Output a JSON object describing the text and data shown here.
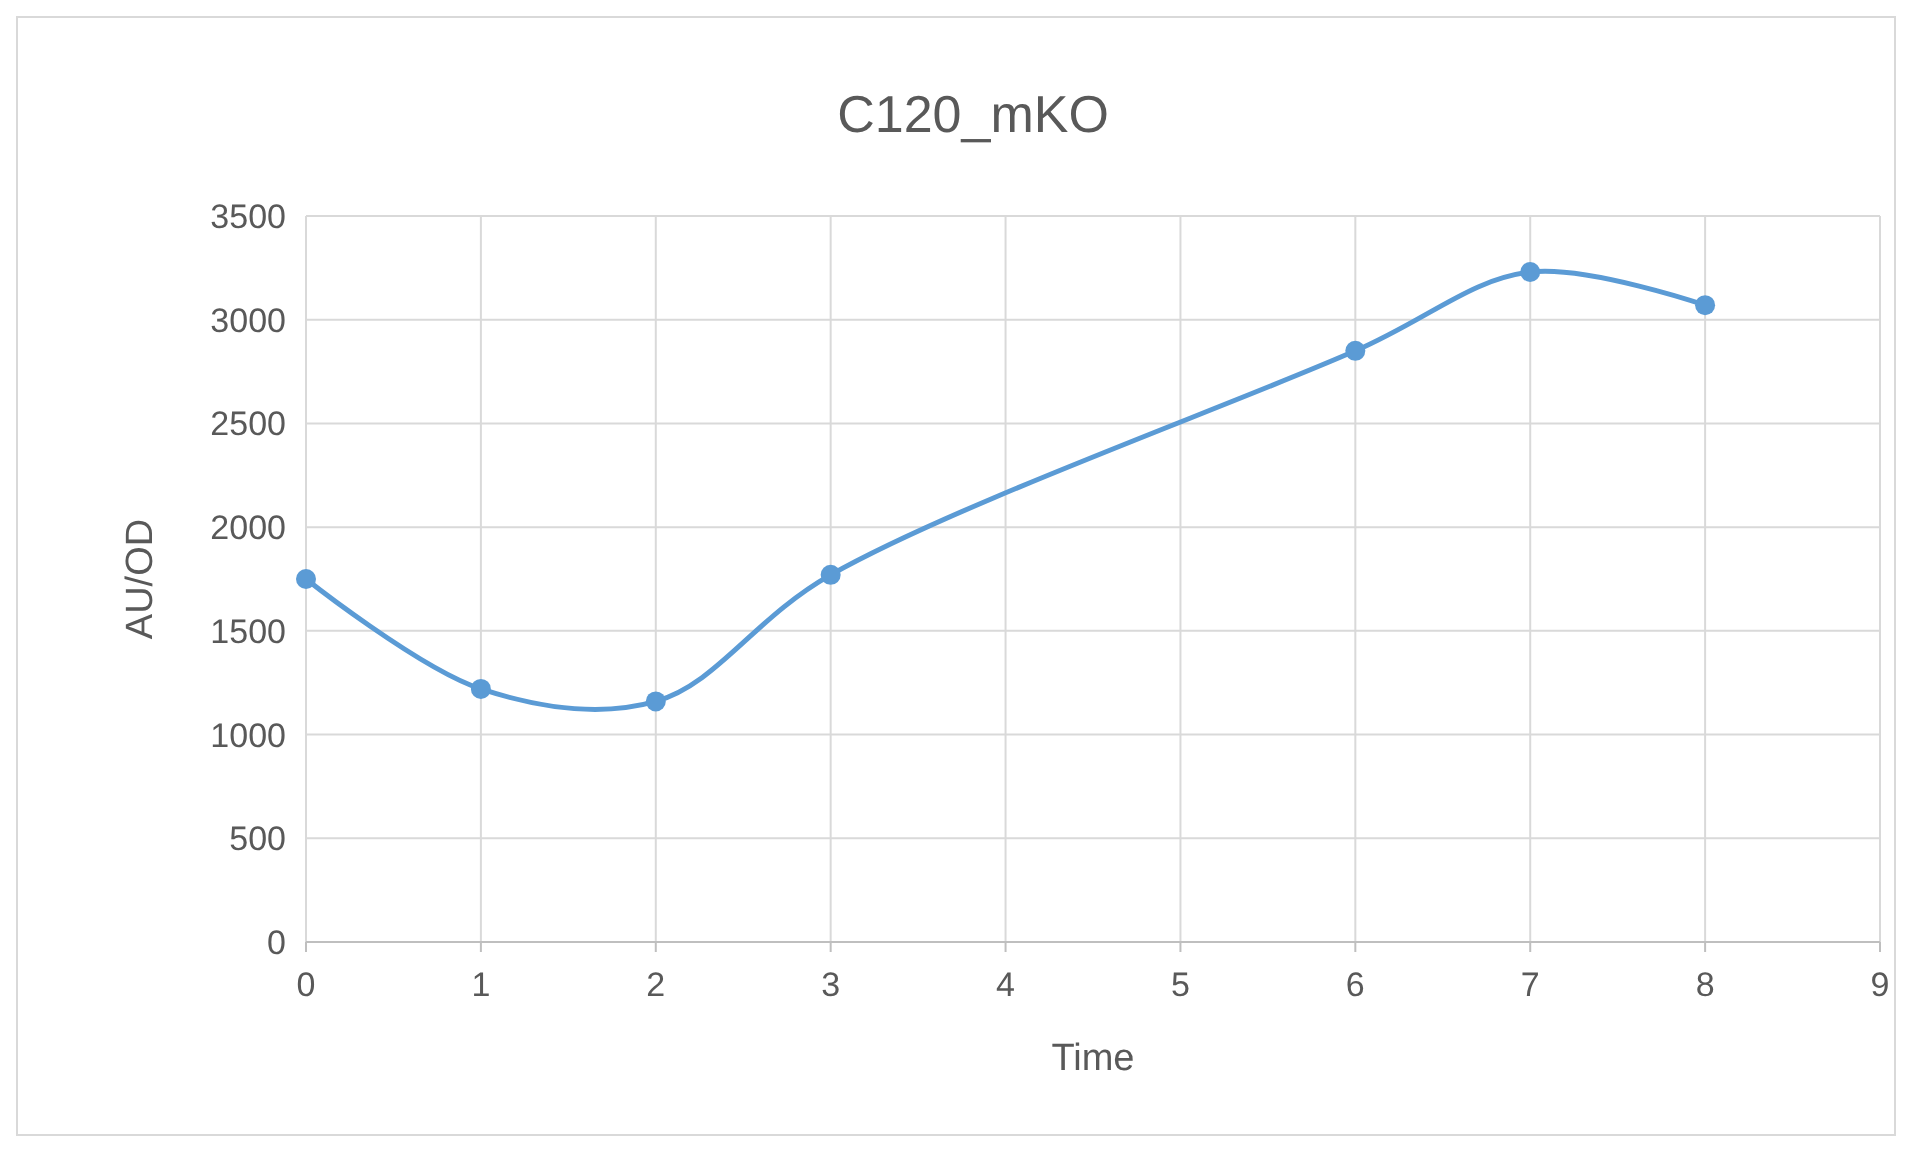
{
  "chart_data": {
    "type": "line",
    "title": "C120_mKO",
    "xlabel": "Time",
    "ylabel": "AU/OD",
    "x": [
      0,
      1,
      2,
      3,
      6,
      7,
      8
    ],
    "series": [
      {
        "color": "#5b9bd5",
        "values": [
          1750,
          1220,
          1160,
          1770,
          2850,
          3230,
          3070
        ]
      }
    ],
    "xlim": [
      0,
      9
    ],
    "xticks": [
      0,
      1,
      2,
      3,
      4,
      5,
      6,
      7,
      8,
      9
    ],
    "ylim": [
      0,
      3500
    ],
    "yticks": [
      0,
      500,
      1000,
      1500,
      2000,
      2500,
      3000,
      3500
    ],
    "grid": true,
    "marker": "circle",
    "line_style": "solid"
  }
}
